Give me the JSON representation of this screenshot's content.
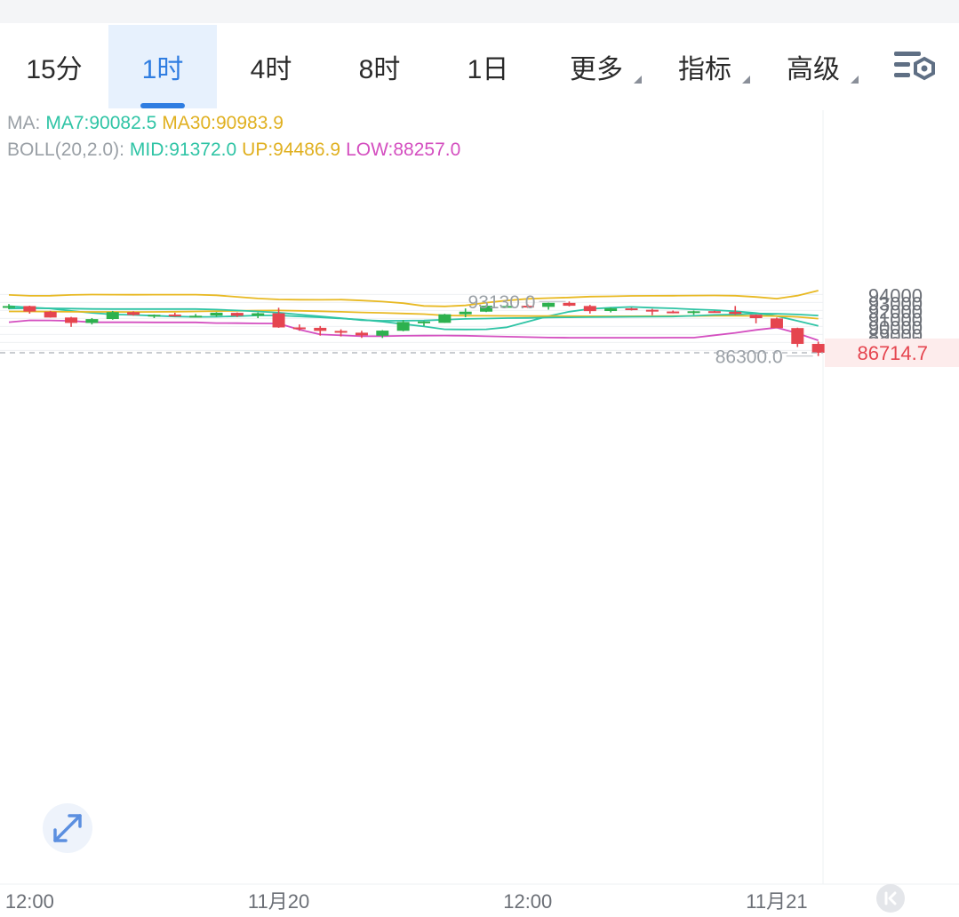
{
  "tabs": [
    {
      "label": "15分",
      "active": false
    },
    {
      "label": "1时",
      "active": true
    },
    {
      "label": "4时",
      "active": false
    },
    {
      "label": "8时",
      "active": false
    },
    {
      "label": "1日",
      "active": false
    },
    {
      "label": "更多",
      "active": false,
      "dropdown": true
    },
    {
      "label": "指标",
      "active": false,
      "dropdown": true
    },
    {
      "label": "高级",
      "active": false,
      "dropdown": true
    }
  ],
  "settings_icon": "chart-settings-icon",
  "legend": {
    "ma_prefix": "MA:",
    "ma7": "MA7:90082.5",
    "ma30": "MA30:90983.9",
    "boll_prefix": "BOLL(20,2.0):",
    "mid": "MID:91372.0",
    "up": "UP:94486.9",
    "low": "LOW:88257.0"
  },
  "colors": {
    "up_candle": "#2db14e",
    "down_candle": "#e5454f",
    "ma7": "#2fc4a5",
    "ma30": "#e8b923",
    "boll_up": "#e8b923",
    "boll_mid": "#2fc4a5",
    "boll_low": "#d44fc0",
    "active_tab": "#2f7de1",
    "current_price": "#e5454f"
  },
  "chart_data": {
    "type": "candlestick",
    "interval": "1时",
    "y_ticks": [
      87000,
      88000,
      89000,
      90000,
      91000,
      92000,
      93000,
      94000
    ],
    "ylim": [
      86000,
      94500
    ],
    "x_tick_labels": [
      {
        "label": "12:00",
        "index": 1
      },
      {
        "label": "11月20",
        "index": 13
      },
      {
        "label": "12:00",
        "index": 25
      },
      {
        "label": "11月21",
        "index": 37
      }
    ],
    "candles": [
      {
        "o": 92400,
        "h": 92800,
        "l": 92150,
        "c": 92550
      },
      {
        "o": 92550,
        "h": 92600,
        "l": 91600,
        "c": 91870
      },
      {
        "o": 91850,
        "h": 91950,
        "l": 91100,
        "c": 91120
      },
      {
        "o": 91120,
        "h": 91200,
        "l": 89950,
        "c": 90440
      },
      {
        "o": 90440,
        "h": 91050,
        "l": 90250,
        "c": 90920
      },
      {
        "o": 90930,
        "h": 91940,
        "l": 90850,
        "c": 91800
      },
      {
        "o": 91800,
        "h": 91900,
        "l": 91350,
        "c": 91440
      },
      {
        "o": 91400,
        "h": 91500,
        "l": 91050,
        "c": 91460
      },
      {
        "o": 91480,
        "h": 91710,
        "l": 91220,
        "c": 91260
      },
      {
        "o": 91260,
        "h": 91560,
        "l": 91230,
        "c": 91340
      },
      {
        "o": 91360,
        "h": 91790,
        "l": 91220,
        "c": 91720
      },
      {
        "o": 91700,
        "h": 91750,
        "l": 91180,
        "c": 91330
      },
      {
        "o": 91340,
        "h": 91750,
        "l": 91040,
        "c": 91650
      },
      {
        "o": 91650,
        "h": 92340,
        "l": 89830,
        "c": 89880
      },
      {
        "o": 89880,
        "h": 90250,
        "l": 89460,
        "c": 89840
      },
      {
        "o": 89830,
        "h": 90060,
        "l": 88850,
        "c": 89450
      },
      {
        "o": 89440,
        "h": 89640,
        "l": 88750,
        "c": 89230
      },
      {
        "o": 89220,
        "h": 89460,
        "l": 88570,
        "c": 88890
      },
      {
        "o": 88850,
        "h": 89540,
        "l": 88560,
        "c": 89480
      },
      {
        "o": 89460,
        "h": 90810,
        "l": 89400,
        "c": 90560
      },
      {
        "o": 90500,
        "h": 90650,
        "l": 90060,
        "c": 90620
      },
      {
        "o": 90450,
        "h": 91580,
        "l": 90450,
        "c": 91520
      },
      {
        "o": 91520,
        "h": 92250,
        "l": 91150,
        "c": 91850
      },
      {
        "o": 91850,
        "h": 92650,
        "l": 91800,
        "c": 92590
      },
      {
        "o": 92560,
        "h": 92740,
        "l": 92350,
        "c": 92560
      },
      {
        "o": 92590,
        "h": 92750,
        "l": 92320,
        "c": 92460
      },
      {
        "o": 92450,
        "h": 92980,
        "l": 92100,
        "c": 92960
      },
      {
        "o": 92950,
        "h": 93130,
        "l": 92510,
        "c": 92590
      },
      {
        "o": 92560,
        "h": 92700,
        "l": 91610,
        "c": 91920
      },
      {
        "o": 91930,
        "h": 92350,
        "l": 91760,
        "c": 92260
      },
      {
        "o": 92260,
        "h": 92330,
        "l": 92000,
        "c": 92080
      },
      {
        "o": 92080,
        "h": 92200,
        "l": 91410,
        "c": 91880
      },
      {
        "o": 91870,
        "h": 91990,
        "l": 91640,
        "c": 91760
      },
      {
        "o": 91780,
        "h": 91990,
        "l": 91450,
        "c": 91900
      },
      {
        "o": 91910,
        "h": 91970,
        "l": 91740,
        "c": 91830
      },
      {
        "o": 91830,
        "h": 92560,
        "l": 91460,
        "c": 91560
      },
      {
        "o": 91470,
        "h": 91500,
        "l": 90390,
        "c": 91040
      },
      {
        "o": 91000,
        "h": 91110,
        "l": 89800,
        "c": 89800
      },
      {
        "o": 89800,
        "h": 89850,
        "l": 87430,
        "c": 87820
      },
      {
        "o": 87820,
        "h": 88110,
        "l": 86300,
        "c": 86715
      }
    ],
    "series": [
      {
        "name": "MA7",
        "values": [
          92550,
          92380,
          92250,
          91950,
          91700,
          91500,
          91450,
          91350,
          91250,
          91200,
          91210,
          91290,
          91380,
          91380,
          91260,
          91150,
          91000,
          90850,
          90600,
          90300,
          90000,
          89650,
          89620,
          89650,
          89900,
          90600,
          91300,
          91850,
          92200,
          92350,
          92450,
          92350,
          92270,
          92150,
          92050,
          91900,
          91680,
          91300,
          90700,
          90080
        ]
      },
      {
        "name": "MA30",
        "values": [
          91880,
          91880,
          91860,
          91830,
          91820,
          91820,
          91810,
          91820,
          91840,
          91880,
          91920,
          91960,
          91990,
          92000,
          91960,
          91900,
          91830,
          91760,
          91700,
          91620,
          91540,
          91380,
          91340,
          91330,
          91320,
          91310,
          91300,
          91290,
          91280,
          91270,
          91280,
          91290,
          91300,
          91310,
          91340,
          91330,
          91320,
          91300,
          91200,
          90980
        ]
      },
      {
        "name": "BOLL UP",
        "values": [
          93950,
          93830,
          93840,
          93940,
          93990,
          93980,
          93970,
          93980,
          93980,
          93980,
          93900,
          93700,
          93500,
          93380,
          93350,
          93330,
          93360,
          93250,
          93110,
          92910,
          92570,
          92510,
          92630,
          92980,
          93240,
          93460,
          93540,
          93620,
          93730,
          93770,
          93820,
          93830,
          93840,
          93870,
          93880,
          93840,
          93690,
          93480,
          93860,
          94490
        ]
      },
      {
        "name": "BOLL MID",
        "values": [
          92250,
          92290,
          92270,
          92230,
          92190,
          92180,
          92180,
          92180,
          92180,
          92180,
          92110,
          92000,
          91880,
          91720,
          91490,
          91270,
          91040,
          90790,
          90710,
          90720,
          90750,
          90850,
          90940,
          90990,
          91040,
          91070,
          91120,
          91140,
          91170,
          91190,
          91210,
          91220,
          91250,
          91330,
          91440,
          91500,
          91620,
          91590,
          91500,
          91370
        ]
      },
      {
        "name": "BOLL LOW",
        "values": [
          90530,
          90770,
          90760,
          90700,
          90520,
          90520,
          90520,
          90510,
          90510,
          90510,
          90420,
          90410,
          90380,
          90370,
          89600,
          89000,
          88900,
          88780,
          88790,
          88830,
          88860,
          88870,
          88840,
          88780,
          88720,
          88670,
          88610,
          88590,
          88590,
          88590,
          88590,
          88590,
          88600,
          88600,
          88900,
          89200,
          89570,
          89860,
          89140,
          88260
        ]
      }
    ],
    "annotations": {
      "high_label": "93130.0",
      "low_label": "86300.0",
      "current_price": "86714.7"
    }
  }
}
